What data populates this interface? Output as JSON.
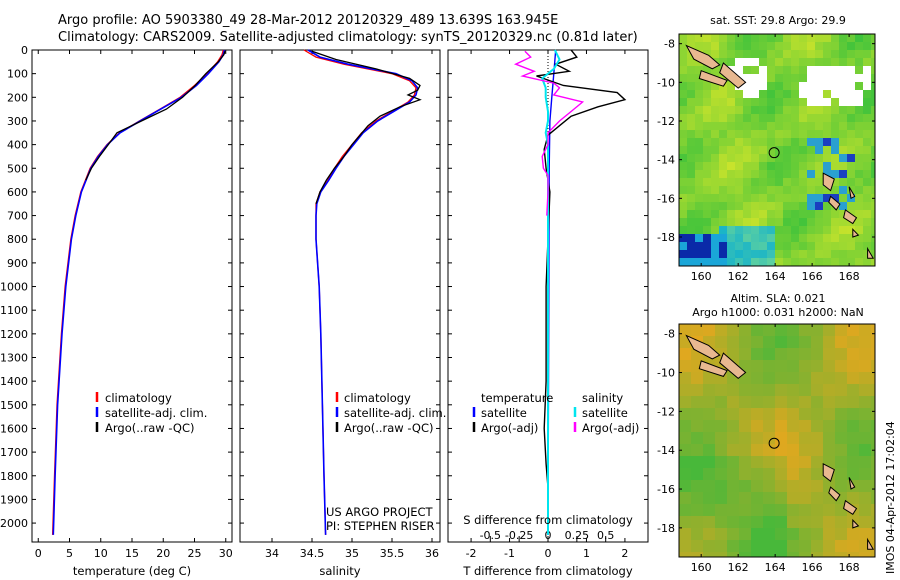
{
  "header": {
    "line1": "Argo profile: AO 5903380_49 28-Mar-2012 20120329_489 13.639S 163.945E",
    "line2": "Climatology: CARS2009. Satellite-adjusted climatology: synTS_20120329.nc (0.81d later)"
  },
  "colors": {
    "climatology": "#ff0000",
    "satellite": "#0000ff",
    "argo": "#000000",
    "salinity_satellite": "#00e5ee",
    "salinity_argo": "#ff00ff"
  },
  "chart_data": [
    {
      "type": "line",
      "panel": "temperature",
      "xlabel": "temperature (deg C)",
      "ylabel": "",
      "xlim": [
        -1,
        31
      ],
      "ylim": [
        2080,
        0
      ],
      "x_ticks": [
        0,
        5,
        10,
        15,
        20,
        25,
        30
      ],
      "y_ticks": [
        0,
        100,
        200,
        300,
        400,
        500,
        600,
        700,
        800,
        900,
        1000,
        1100,
        1200,
        1300,
        1400,
        1500,
        1600,
        1700,
        1800,
        1900,
        2000
      ],
      "legend": [
        "climatology",
        "satellite-adj. clim.",
        "Argo(..raw -QC)"
      ],
      "series": [
        {
          "name": "climatology",
          "depth": [
            0,
            20,
            50,
            100,
            150,
            200,
            250,
            300,
            350,
            400,
            450,
            500,
            600,
            700,
            800,
            1000,
            1200,
            1500,
            1800,
            2050
          ],
          "values": [
            29.6,
            29.4,
            28.7,
            27.0,
            25.0,
            22.7,
            19.5,
            16.2,
            13.0,
            11.0,
            9.5,
            8.3,
            6.8,
            5.9,
            5.2,
            4.3,
            3.7,
            3.0,
            2.6,
            2.3
          ]
        },
        {
          "name": "satellite-adj. clim.",
          "depth": [
            0,
            20,
            50,
            100,
            150,
            200,
            250,
            300,
            350,
            400,
            450,
            500,
            600,
            700,
            800,
            1000,
            1200,
            1500,
            1800,
            2050
          ],
          "values": [
            29.8,
            29.6,
            28.9,
            27.2,
            25.3,
            22.9,
            19.6,
            16.3,
            13.1,
            11.1,
            9.6,
            8.4,
            6.9,
            6.0,
            5.3,
            4.4,
            3.8,
            3.1,
            2.7,
            2.4
          ]
        },
        {
          "name": "Argo(..raw -QC)",
          "depth": [
            5,
            20,
            50,
            100,
            150,
            200,
            250,
            300,
            350,
            400,
            450,
            500,
            550
          ],
          "values": [
            29.9,
            29.7,
            28.8,
            26.8,
            25.1,
            23.1,
            20.5,
            16.5,
            12.6,
            11.2,
            9.8,
            8.5,
            7.6
          ]
        }
      ]
    },
    {
      "type": "line",
      "panel": "salinity",
      "xlabel": "salinity",
      "xlim": [
        33.6,
        36.1
      ],
      "ylim": [
        2080,
        0
      ],
      "x_ticks": [
        34,
        34.5,
        35,
        35.5,
        36
      ],
      "x_tick_labels": [
        "34",
        "34.5",
        "35",
        "35.5",
        "36"
      ],
      "legend": [
        "climatology",
        "satellite-adj. clim.",
        "Argo(..raw -QC)"
      ],
      "annotations": [
        "US ARGO PROJECT",
        "PI: STEPHEN RISER"
      ],
      "series": [
        {
          "name": "climatology",
          "depth": [
            0,
            30,
            60,
            100,
            130,
            160,
            190,
            220,
            260,
            300,
            350,
            400,
            450,
            500,
            550,
            600,
            650,
            700,
            800,
            900,
            1000,
            1200,
            1500,
            1800,
            2050
          ],
          "values": [
            34.4,
            34.55,
            34.9,
            35.5,
            35.72,
            35.8,
            35.78,
            35.7,
            35.5,
            35.3,
            35.12,
            35.0,
            34.88,
            34.78,
            34.7,
            34.6,
            34.55,
            34.55,
            34.55,
            34.57,
            34.59,
            34.61,
            34.63,
            34.65,
            34.67
          ]
        },
        {
          "name": "satellite-adj. clim.",
          "depth": [
            0,
            30,
            60,
            100,
            130,
            160,
            190,
            220,
            260,
            300,
            350,
            400,
            450,
            500,
            550,
            600,
            650,
            700,
            800,
            900,
            1000,
            1200,
            1500,
            1800,
            2050
          ],
          "values": [
            34.45,
            34.6,
            34.95,
            35.55,
            35.75,
            35.82,
            35.8,
            35.72,
            35.52,
            35.32,
            35.14,
            35.02,
            34.9,
            34.8,
            34.71,
            34.61,
            34.56,
            34.55,
            34.55,
            34.57,
            34.59,
            34.61,
            34.63,
            34.65,
            34.67
          ]
        },
        {
          "name": "Argo(..raw -QC)",
          "depth": [
            5,
            40,
            80,
            120,
            150,
            170,
            190,
            210,
            240,
            280,
            320,
            360,
            400,
            450,
            500,
            550,
            600,
            650
          ],
          "values": [
            34.5,
            34.8,
            35.3,
            35.72,
            35.85,
            35.82,
            35.7,
            35.85,
            35.6,
            35.35,
            35.2,
            35.1,
            35.0,
            34.9,
            34.78,
            34.68,
            34.6,
            34.55
          ]
        }
      ]
    },
    {
      "type": "line",
      "panel": "difference",
      "xlabel": "T difference from climatology",
      "xlabel_top": "S difference from climatology",
      "xlim": [
        -2.6,
        2.6
      ],
      "ylim": [
        2080,
        0
      ],
      "x_ticks": [
        -2,
        -1,
        0,
        1,
        2
      ],
      "s_ticks": [
        -0.5,
        -0.25,
        0,
        0.25,
        0.5
      ],
      "s_tick_labels": [
        "-0.5",
        "-0.25",
        "0",
        "0.25",
        "0.5"
      ],
      "legend_temperature_title": "temperature",
      "legend_salinity_title": "salinity",
      "legend": [
        "satellite",
        "Argo(-adj)",
        "satellite",
        "Argo(-adj)"
      ],
      "series": [
        {
          "name": "T satellite",
          "depth": [
            0,
            100,
            200,
            300,
            500,
            2050
          ],
          "values": [
            0.2,
            0.15,
            0.1,
            0.05,
            0.03,
            0.0
          ]
        },
        {
          "name": "T Argo(-adj)",
          "depth": [
            0,
            30,
            60,
            90,
            110,
            150,
            180,
            210,
            240,
            280,
            320,
            360,
            420,
            500,
            600,
            800,
            1000,
            1400,
            1600,
            1750,
            1850
          ],
          "values": [
            0.6,
            0.75,
            0.2,
            0.55,
            -0.3,
            0.4,
            1.8,
            2.0,
            1.3,
            0.6,
            0.3,
            0.0,
            -0.1,
            -0.05,
            0.05,
            0.0,
            -0.05,
            -0.05,
            -0.1,
            -0.05,
            0.0
          ]
        },
        {
          "name": "S satellite",
          "depth": [
            0,
            40,
            80,
            120,
            160,
            200,
            260,
            300,
            350,
            400,
            500,
            2050
          ],
          "values": [
            0.06,
            0.1,
            0.05,
            -0.05,
            -0.02,
            -0.02,
            0.0,
            0.0,
            -0.02,
            0.0,
            0.0,
            0.0
          ]
        },
        {
          "name": "S Argo(-adj)",
          "depth": [
            5,
            30,
            60,
            90,
            110,
            140,
            160,
            190,
            220,
            260,
            300,
            350,
            400,
            450,
            500,
            530,
            600,
            700
          ],
          "values": [
            -0.2,
            -0.15,
            -0.28,
            -0.12,
            -0.22,
            0.05,
            0.1,
            0.05,
            0.3,
            0.2,
            0.1,
            0.0,
            0.0,
            -0.05,
            -0.04,
            0.0,
            0.0,
            -0.01
          ]
        }
      ]
    },
    {
      "type": "heatmap",
      "panel": "sst_map",
      "title": "sat. SST: 29.8 Argo: 29.9",
      "x_ticks": [
        160,
        162,
        164,
        166,
        168
      ],
      "y_ticks": [
        -8,
        -10,
        -12,
        -14,
        -16,
        -18
      ],
      "xlim": [
        158.8,
        169.4
      ],
      "ylim": [
        -19.5,
        -7.5
      ],
      "argo_position": [
        163.945,
        -13.639
      ]
    },
    {
      "type": "heatmap",
      "panel": "sla_map",
      "title": "Altim. SLA: 0.021",
      "subtitle": "Argo h1000: 0.031 h2000: NaN",
      "x_ticks": [
        160,
        162,
        164,
        166,
        168
      ],
      "y_ticks": [
        -8,
        -10,
        -12,
        -14,
        -16,
        -18
      ],
      "xlim": [
        158.8,
        169.4
      ],
      "ylim": [
        -19.5,
        -7.5
      ],
      "argo_position": [
        163.945,
        -13.639
      ]
    }
  ],
  "footer": {
    "stamp": "IMOS 04-Apr-2012 17:02:04"
  }
}
